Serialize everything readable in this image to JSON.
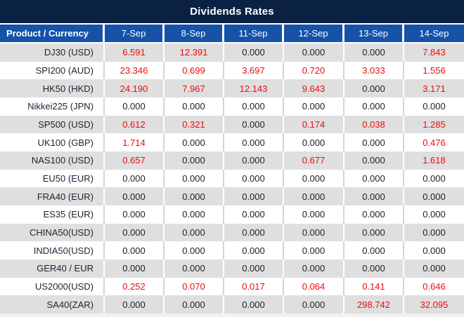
{
  "title": "Dividends Rates",
  "colors": {
    "title_bg": "#0b2143",
    "header_bg": "#1552a8",
    "header_text": "#ffffff",
    "row_alt_bg": "#dfdfdf",
    "row_bg": "#ffffff",
    "value_red": "#ee0b0b",
    "value_black": "#212121",
    "product_text": "#1c2333",
    "divider_gray": "#d4d4d4"
  },
  "table": {
    "product_header": "Product / Currency",
    "date_headers": [
      "7-Sep",
      "8-Sep",
      "11-Sep",
      "12-Sep",
      "13-Sep",
      "14-Sep"
    ],
    "rows": [
      {
        "product": "DJ30 (USD)",
        "values": [
          "6.591",
          "12.391",
          "0.000",
          "0.000",
          "0.000",
          "7.843"
        ]
      },
      {
        "product": "SPI200 (AUD)",
        "values": [
          "23.346",
          "0.699",
          "3.697",
          "0.720",
          "3.033",
          "1.556"
        ]
      },
      {
        "product": "HK50 (HKD)",
        "values": [
          "24.190",
          "7.967",
          "12.143",
          "9.643",
          "0.000",
          "3.171"
        ]
      },
      {
        "product": "Nikkei225 (JPN)",
        "values": [
          "0.000",
          "0.000",
          "0.000",
          "0.000",
          "0.000",
          "0.000"
        ]
      },
      {
        "product": "SP500 (USD)",
        "values": [
          "0.612",
          "0.321",
          "0.000",
          "0.174",
          "0.038",
          "1.285"
        ]
      },
      {
        "product": "UK100 (GBP)",
        "values": [
          "1.714",
          "0.000",
          "0.000",
          "0.000",
          "0.000",
          "0.476"
        ]
      },
      {
        "product": "NAS100 (USD)",
        "values": [
          "0.657",
          "0.000",
          "0.000",
          "0.677",
          "0.000",
          "1.618"
        ]
      },
      {
        "product": "EU50 (EUR)",
        "values": [
          "0.000",
          "0.000",
          "0.000",
          "0.000",
          "0.000",
          "0.000"
        ]
      },
      {
        "product": "FRA40 (EUR)",
        "values": [
          "0.000",
          "0.000",
          "0.000",
          "0.000",
          "0.000",
          "0.000"
        ]
      },
      {
        "product": "ES35 (EUR)",
        "values": [
          "0.000",
          "0.000",
          "0.000",
          "0.000",
          "0.000",
          "0.000"
        ]
      },
      {
        "product": "CHINA50(USD)",
        "values": [
          "0.000",
          "0.000",
          "0.000",
          "0.000",
          "0.000",
          "0.000"
        ]
      },
      {
        "product": "INDIA50(USD)",
        "values": [
          "0.000",
          "0.000",
          "0.000",
          "0.000",
          "0.000",
          "0.000"
        ]
      },
      {
        "product": "GER40 / EUR",
        "values": [
          "0.000",
          "0.000",
          "0.000",
          "0.000",
          "0.000",
          "0.000"
        ]
      },
      {
        "product": "US2000(USD)",
        "values": [
          "0.252",
          "0.070",
          "0.017",
          "0.064",
          "0.141",
          "0.646"
        ]
      },
      {
        "product": "SA40(ZAR)",
        "values": [
          "0.000",
          "0.000",
          "0.000",
          "0.000",
          "298.742",
          "32.095"
        ]
      }
    ]
  }
}
